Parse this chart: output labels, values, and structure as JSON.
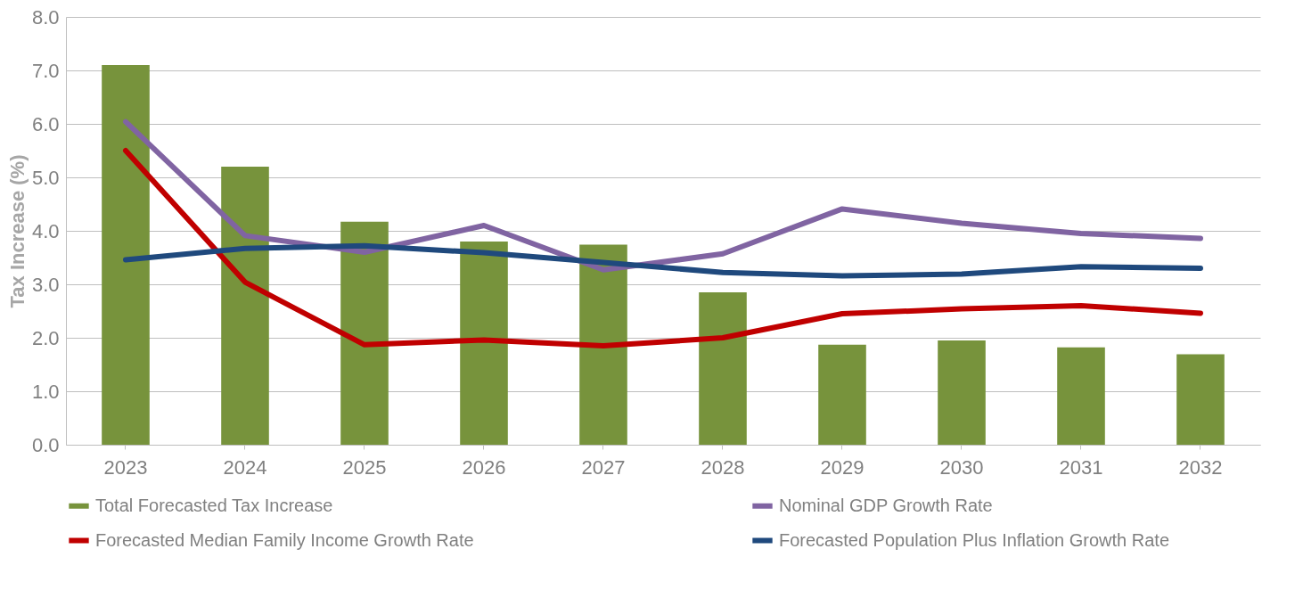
{
  "chart_data": {
    "type": "bar",
    "ylabel": "Tax Increase (%)",
    "categories": [
      "2023",
      "2024",
      "2025",
      "2026",
      "2027",
      "2028",
      "2029",
      "2030",
      "2031",
      "2032"
    ],
    "series": [
      {
        "name": "Total Forecasted Tax Increase",
        "color": "#77933c",
        "values": [
          7.1,
          5.2,
          4.17,
          3.8,
          3.74,
          2.85,
          1.87,
          1.95,
          1.82,
          1.69
        ]
      },
      {
        "name": "Nominal GDP Growth Rate",
        "type": "line",
        "color": "#8064a2",
        "values": [
          6.04,
          3.91,
          3.6,
          4.1,
          3.27,
          3.57,
          4.41,
          4.14,
          3.95,
          3.86
        ]
      },
      {
        "name": "Forecasted Median Family Income Growth Rate",
        "type": "line",
        "color": "#c00000",
        "values": [
          5.5,
          3.04,
          1.87,
          1.96,
          1.85,
          2.0,
          2.45,
          2.54,
          2.6,
          2.46
        ]
      },
      {
        "name": "Forecasted Population Plus Inflation Growth Rate",
        "type": "line",
        "color": "#1f497d",
        "values": [
          3.46,
          3.67,
          3.72,
          3.59,
          3.41,
          3.22,
          3.16,
          3.19,
          3.33,
          3.3
        ]
      }
    ],
    "ylim": [
      0,
      8
    ],
    "yticks": [
      {
        "value": 0,
        "label": "0.0"
      },
      {
        "value": 1,
        "label": "1.0"
      },
      {
        "value": 2,
        "label": "2.0"
      },
      {
        "value": 3,
        "label": "3.0"
      },
      {
        "value": 4,
        "label": "4.0"
      },
      {
        "value": 5,
        "label": "5.0"
      },
      {
        "value": 6,
        "label": "6.0"
      },
      {
        "value": 7,
        "label": "7.0"
      },
      {
        "value": 8,
        "label": "8.0"
      }
    ],
    "grid": "y",
    "legend": "bottom",
    "marker": "none",
    "line_style": "solid"
  }
}
